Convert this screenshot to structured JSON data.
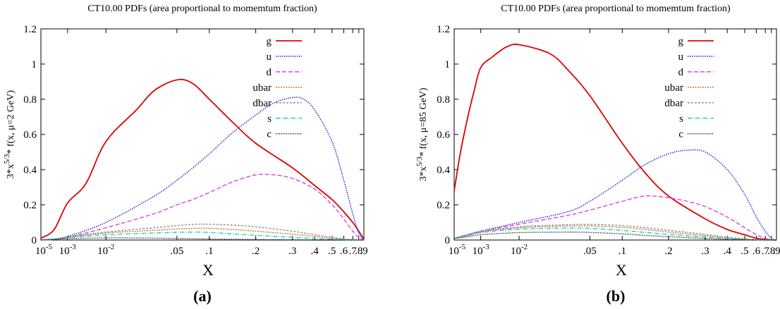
{
  "chart_data": [
    {
      "type": "line",
      "title": "CT10.00 PDFs (area proportional to momemtum fraction)",
      "xlabel": "X",
      "ylabel": "3*x^{5/3}* f(x, μ=2 GeV)",
      "ylabel_parts": {
        "base": "3*x",
        "sup": "5/3",
        "rest": "* f(x, μ=2 GeV)"
      },
      "x_scale": "custom-log (log ticks below 0.1, compressed linear ticks above)",
      "xlim": [
        1e-05,
        0.9
      ],
      "ylim": [
        0,
        1.2
      ],
      "x_ticks": [
        {
          "v": 1e-05,
          "base": "10",
          "exp": "-5"
        },
        {
          "v": 0.001,
          "base": "10",
          "exp": "-3"
        },
        {
          "v": 0.01,
          "base": "10",
          "exp": "-2"
        },
        {
          "v": 0.05,
          "label": ".05"
        },
        {
          "v": 0.1,
          "label": ".1"
        },
        {
          "v": 0.2,
          "label": ".2"
        },
        {
          "v": 0.3,
          "label": ".3"
        },
        {
          "v": 0.4,
          "label": ".4"
        },
        {
          "v": 0.5,
          "label": ".5"
        },
        {
          "v": 0.6,
          "label": ".6"
        },
        {
          "v": 0.7,
          "label": ".7"
        },
        {
          "v": 0.8,
          "label": ".8"
        },
        {
          "v": 0.9,
          "label": ".9"
        }
      ],
      "y_ticks": [
        {
          "v": 0,
          "label": "0"
        },
        {
          "v": 0.2,
          "label": "0.2"
        },
        {
          "v": 0.4,
          "label": "0.4"
        },
        {
          "v": 0.6,
          "label": "0.6"
        },
        {
          "v": 0.8,
          "label": "0.8"
        },
        {
          "v": 1.0,
          "label": "1"
        },
        {
          "v": 1.2,
          "label": "1.2"
        }
      ],
      "grid": false,
      "legend_position": "top-right",
      "panel_label": "(a)",
      "series": [
        {
          "name": "g",
          "color": "#e00000",
          "dash": "",
          "x": [
            1e-05,
            0.0001,
            0.001,
            0.003,
            0.01,
            0.02,
            0.03,
            0.05,
            0.07,
            0.1,
            0.15,
            0.2,
            0.3,
            0.4,
            0.5,
            0.6,
            0.7,
            0.8,
            0.9
          ],
          "y": [
            0.01,
            0.06,
            0.21,
            0.32,
            0.56,
            0.74,
            0.85,
            0.91,
            0.89,
            0.8,
            0.67,
            0.55,
            0.41,
            0.31,
            0.23,
            0.16,
            0.1,
            0.05,
            0.005
          ]
        },
        {
          "name": "u",
          "color": "#2020d0",
          "dash": "1.5 1.5",
          "x": [
            1e-05,
            0.0001,
            0.001,
            0.01,
            0.03,
            0.05,
            0.07,
            0.1,
            0.15,
            0.2,
            0.25,
            0.3,
            0.35,
            0.4,
            0.5,
            0.6,
            0.7,
            0.8,
            0.9
          ],
          "y": [
            0,
            0.005,
            0.02,
            0.1,
            0.25,
            0.34,
            0.41,
            0.49,
            0.61,
            0.71,
            0.78,
            0.81,
            0.8,
            0.74,
            0.56,
            0.34,
            0.15,
            0.04,
            0
          ]
        },
        {
          "name": "d",
          "color": "#e040e0",
          "dash": "6 3",
          "x": [
            1e-05,
            0.0001,
            0.001,
            0.01,
            0.03,
            0.05,
            0.07,
            0.1,
            0.15,
            0.2,
            0.25,
            0.3,
            0.4,
            0.5,
            0.6,
            0.7,
            0.8,
            0.9
          ],
          "y": [
            0,
            0.003,
            0.015,
            0.07,
            0.15,
            0.2,
            0.23,
            0.27,
            0.33,
            0.37,
            0.37,
            0.35,
            0.29,
            0.2,
            0.12,
            0.05,
            0.015,
            0
          ]
        },
        {
          "name": "ubar",
          "color": "#e07020",
          "dash": "2 1.5",
          "x": [
            1e-05,
            0.0001,
            0.001,
            0.01,
            0.03,
            0.05,
            0.07,
            0.1,
            0.15,
            0.2,
            0.3,
            0.4,
            0.5,
            0.6,
            0.7,
            0.8,
            0.9
          ],
          "y": [
            0.001,
            0.005,
            0.015,
            0.04,
            0.055,
            0.063,
            0.066,
            0.066,
            0.06,
            0.05,
            0.033,
            0.02,
            0.01,
            0.005,
            0.002,
            0,
            0
          ]
        },
        {
          "name": "dbar",
          "color": "#909090",
          "dash": "3 2",
          "x": [
            1e-05,
            0.0001,
            0.001,
            0.01,
            0.03,
            0.05,
            0.07,
            0.1,
            0.15,
            0.2,
            0.3,
            0.4,
            0.5,
            0.6,
            0.7,
            0.8,
            0.9
          ],
          "y": [
            0.001,
            0.006,
            0.018,
            0.045,
            0.07,
            0.082,
            0.089,
            0.09,
            0.085,
            0.075,
            0.05,
            0.03,
            0.015,
            0.006,
            0.002,
            0,
            0
          ]
        },
        {
          "name": "s",
          "color": "#10d0d0",
          "dash": "6 2 1 2",
          "x": [
            1e-05,
            0.0001,
            0.001,
            0.01,
            0.03,
            0.05,
            0.07,
            0.1,
            0.15,
            0.2,
            0.3,
            0.4,
            0.5,
            0.6,
            0.7,
            0.8,
            0.9
          ],
          "y": [
            0.001,
            0.005,
            0.013,
            0.03,
            0.04,
            0.044,
            0.045,
            0.043,
            0.035,
            0.027,
            0.015,
            0.008,
            0.004,
            0.002,
            0,
            0,
            0
          ]
        },
        {
          "name": "c",
          "color": "#000000",
          "dash": "1 1.5",
          "x": [
            1e-05,
            0.0001,
            0.001,
            0.01,
            0.03,
            0.05,
            0.1,
            0.2,
            0.3,
            0.4,
            0.6,
            0.9
          ],
          "y": [
            0.001,
            0.004,
            0.008,
            0.012,
            0.011,
            0.009,
            0.006,
            0.003,
            0.001,
            0,
            0,
            0
          ]
        }
      ]
    },
    {
      "type": "line",
      "title": "CT10.00 PDFs (area proportional to momemtum fraction)",
      "xlabel": "X",
      "ylabel": "3*x^{5/3}* f(x, μ=85 GeV)",
      "ylabel_parts": {
        "base": "3*x",
        "sup": "5/3",
        "rest": "* f(x, μ=85 GeV)"
      },
      "x_scale": "custom-log (log ticks below 0.1, compressed linear ticks above)",
      "xlim": [
        1e-05,
        0.9
      ],
      "ylim": [
        0,
        1.2
      ],
      "x_ticks": [
        {
          "v": 1e-05,
          "base": "10",
          "exp": "-5"
        },
        {
          "v": 0.001,
          "base": "10",
          "exp": "-3"
        },
        {
          "v": 0.01,
          "base": "10",
          "exp": "-2"
        },
        {
          "v": 0.05,
          "label": ".05"
        },
        {
          "v": 0.1,
          "label": ".1"
        },
        {
          "v": 0.2,
          "label": ".2"
        },
        {
          "v": 0.3,
          "label": ".3"
        },
        {
          "v": 0.4,
          "label": ".4"
        },
        {
          "v": 0.5,
          "label": ".5"
        },
        {
          "v": 0.6,
          "label": ".6"
        },
        {
          "v": 0.7,
          "label": ".7"
        },
        {
          "v": 0.8,
          "label": ".8"
        },
        {
          "v": 0.9,
          "label": ".9"
        }
      ],
      "y_ticks": [
        {
          "v": 0,
          "label": "0"
        },
        {
          "v": 0.2,
          "label": "0.2"
        },
        {
          "v": 0.4,
          "label": "0.4"
        },
        {
          "v": 0.6,
          "label": "0.6"
        },
        {
          "v": 0.8,
          "label": "0.8"
        },
        {
          "v": 1.0,
          "label": "1"
        },
        {
          "v": 1.2,
          "label": "1.2"
        }
      ],
      "grid": false,
      "legend_position": "top-right",
      "panel_label": "(b)",
      "series": [
        {
          "name": "g",
          "color": "#e00000",
          "dash": "",
          "x": [
            1e-05,
            3e-05,
            0.0001,
            0.0003,
            0.001,
            0.002,
            0.003,
            0.005,
            0.01,
            0.02,
            0.03,
            0.05,
            0.1,
            0.15,
            0.2,
            0.3,
            0.4,
            0.5,
            0.6,
            0.7,
            0.8,
            0.9
          ],
          "y": [
            0.28,
            0.5,
            0.69,
            0.84,
            0.98,
            1.04,
            1.07,
            1.1,
            1.11,
            1.06,
            0.97,
            0.82,
            0.55,
            0.38,
            0.25,
            0.12,
            0.06,
            0.03,
            0.01,
            0.004,
            0.001,
            0
          ]
        },
        {
          "name": "u",
          "color": "#2020d0",
          "dash": "1.5 1.5",
          "x": [
            1e-05,
            0.0001,
            0.001,
            0.01,
            0.03,
            0.05,
            0.1,
            0.15,
            0.2,
            0.25,
            0.3,
            0.4,
            0.5,
            0.6,
            0.7,
            0.8,
            0.9
          ],
          "y": [
            0.01,
            0.03,
            0.05,
            0.1,
            0.16,
            0.22,
            0.34,
            0.43,
            0.49,
            0.51,
            0.5,
            0.4,
            0.26,
            0.13,
            0.05,
            0.01,
            0
          ]
        },
        {
          "name": "d",
          "color": "#e040e0",
          "dash": "6 3",
          "x": [
            1e-05,
            0.0001,
            0.001,
            0.01,
            0.03,
            0.05,
            0.1,
            0.15,
            0.2,
            0.25,
            0.3,
            0.4,
            0.5,
            0.6,
            0.7,
            0.8,
            0.9
          ],
          "y": [
            0.01,
            0.03,
            0.05,
            0.09,
            0.14,
            0.17,
            0.22,
            0.25,
            0.24,
            0.22,
            0.19,
            0.13,
            0.07,
            0.03,
            0.01,
            0,
            0
          ]
        },
        {
          "name": "ubar",
          "color": "#e07020",
          "dash": "2 1.5",
          "x": [
            1e-05,
            0.0001,
            0.001,
            0.01,
            0.03,
            0.05,
            0.1,
            0.15,
            0.2,
            0.3,
            0.4,
            0.5,
            0.6,
            0.7,
            0.8,
            0.9
          ],
          "y": [
            0.01,
            0.025,
            0.045,
            0.07,
            0.08,
            0.08,
            0.072,
            0.06,
            0.045,
            0.025,
            0.012,
            0.005,
            0.002,
            0,
            0,
            0
          ]
        },
        {
          "name": "dbar",
          "color": "#909090",
          "dash": "3 2",
          "x": [
            1e-05,
            0.0001,
            0.001,
            0.01,
            0.03,
            0.05,
            0.1,
            0.15,
            0.2,
            0.3,
            0.4,
            0.5,
            0.6,
            0.7,
            0.8,
            0.9
          ],
          "y": [
            0.01,
            0.027,
            0.048,
            0.075,
            0.087,
            0.089,
            0.082,
            0.07,
            0.055,
            0.032,
            0.016,
            0.007,
            0.003,
            0,
            0,
            0
          ]
        },
        {
          "name": "s",
          "color": "#10d0d0",
          "dash": "6 2 1 2",
          "x": [
            1e-05,
            0.0001,
            0.001,
            0.01,
            0.03,
            0.05,
            0.1,
            0.15,
            0.2,
            0.3,
            0.4,
            0.5,
            0.6,
            0.7,
            0.8,
            0.9
          ],
          "y": [
            0.01,
            0.024,
            0.042,
            0.062,
            0.068,
            0.066,
            0.055,
            0.043,
            0.032,
            0.017,
            0.008,
            0.003,
            0.001,
            0,
            0,
            0
          ]
        },
        {
          "name": "c",
          "color": "#000000",
          "dash": "1 1.5",
          "x": [
            1e-05,
            0.0001,
            0.001,
            0.01,
            0.03,
            0.05,
            0.1,
            0.15,
            0.2,
            0.3,
            0.4,
            0.5,
            0.6,
            0.9
          ],
          "y": [
            0.009,
            0.018,
            0.03,
            0.042,
            0.045,
            0.043,
            0.035,
            0.026,
            0.019,
            0.009,
            0.004,
            0.001,
            0,
            0
          ]
        }
      ]
    }
  ]
}
